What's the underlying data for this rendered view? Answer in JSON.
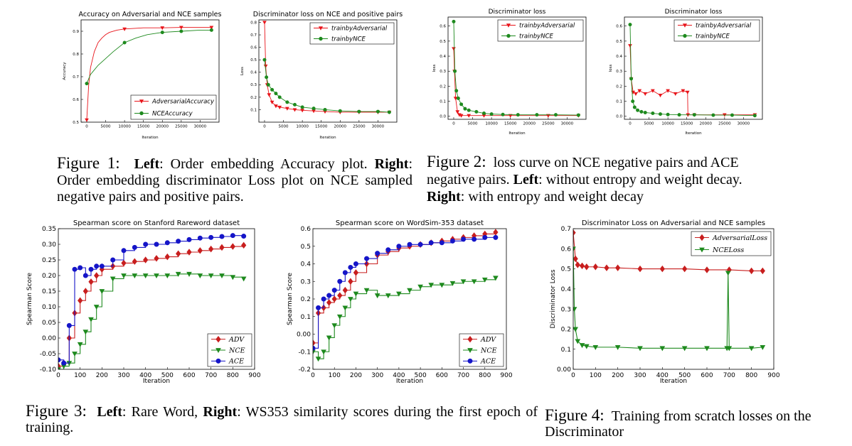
{
  "chart_data": [
    {
      "id": "fig1-left",
      "type": "line",
      "title": "Accuracy on Adversarial and NCE samples",
      "xlabel": "Iteration",
      "ylabel": "Accuracy",
      "xlim": [
        -1500,
        35000
      ],
      "ylim": [
        0.5,
        0.95
      ],
      "xticks": [
        0,
        5000,
        10000,
        15000,
        20000,
        25000,
        30000
      ],
      "yticks": [
        0.5,
        0.6,
        0.7,
        0.8,
        0.9
      ],
      "legend_position": "lower-right",
      "series": [
        {
          "name": "AdversarialAccuracy",
          "color": "#e8141a",
          "marker": "triangle-down",
          "x": [
            0,
            500,
            1000,
            2000,
            3000,
            4000,
            5000,
            6000,
            8000,
            10000,
            15000,
            20000,
            25000,
            30000,
            33000
          ],
          "y": [
            0.51,
            0.66,
            0.74,
            0.81,
            0.85,
            0.87,
            0.885,
            0.895,
            0.905,
            0.91,
            0.915,
            0.915,
            0.917,
            0.917,
            0.917
          ],
          "markers_x": [
            0,
            10000,
            20000,
            25000,
            33000
          ]
        },
        {
          "name": "NCEAccuracy",
          "color": "#1e8a1e",
          "marker": "circle",
          "x": [
            0,
            500,
            1000,
            2000,
            3000,
            5000,
            7000,
            10000,
            13000,
            16000,
            20000,
            25000,
            30000,
            33000
          ],
          "y": [
            0.67,
            0.69,
            0.71,
            0.73,
            0.75,
            0.78,
            0.81,
            0.85,
            0.87,
            0.885,
            0.895,
            0.9,
            0.905,
            0.905
          ],
          "markers_x": [
            0,
            10000,
            20000,
            25000,
            33000
          ]
        }
      ]
    },
    {
      "id": "fig1-right",
      "type": "line",
      "title": "Discriminator loss on NCE and positive pairs",
      "xlabel": "Iteration",
      "ylabel": "Loss",
      "xlim": [
        -1500,
        35000
      ],
      "ylim": [
        0.0,
        0.82
      ],
      "xticks": [
        0,
        5000,
        10000,
        15000,
        20000,
        25000,
        30000
      ],
      "yticks": [
        0.1,
        0.2,
        0.3,
        0.4,
        0.5,
        0.6,
        0.7,
        0.8
      ],
      "legend_position": "upper-right",
      "series": [
        {
          "name": "trainbyAdversarial",
          "color": "#e8141a",
          "marker": "triangle-down",
          "x": [
            0,
            300,
            700,
            1200,
            2000,
            3000,
            4000,
            6000,
            8000,
            10000,
            13000,
            16000,
            20000,
            25000,
            30000,
            33000
          ],
          "y": [
            0.8,
            0.45,
            0.3,
            0.22,
            0.16,
            0.13,
            0.12,
            0.11,
            0.1,
            0.095,
            0.09,
            0.085,
            0.08,
            0.08,
            0.08,
            0.08
          ]
        },
        {
          "name": "trainbyNCE",
          "color": "#1e8a1e",
          "marker": "circle",
          "x": [
            0,
            500,
            1000,
            2000,
            3000,
            4000,
            6000,
            8000,
            10000,
            13000,
            16000,
            20000,
            25000,
            30000,
            33000
          ],
          "y": [
            0.5,
            0.36,
            0.3,
            0.26,
            0.23,
            0.2,
            0.16,
            0.14,
            0.12,
            0.11,
            0.1,
            0.09,
            0.085,
            0.085,
            0.08
          ]
        }
      ]
    },
    {
      "id": "fig2-left",
      "type": "line",
      "title": "Discriminator loss",
      "xlabel": "Iteration",
      "ylabel": "loss",
      "xlim": [
        -1500,
        35000
      ],
      "ylim": [
        -0.02,
        0.66
      ],
      "xticks": [
        0,
        5000,
        10000,
        15000,
        20000,
        25000,
        30000
      ],
      "yticks": [
        0.0,
        0.1,
        0.2,
        0.3,
        0.4,
        0.5,
        0.6
      ],
      "legend_position": "upper-right",
      "series": [
        {
          "name": "trainbyAdversarial",
          "color": "#e8141a",
          "marker": "triangle-down",
          "x": [
            0,
            200,
            500,
            1000,
            1500,
            2000,
            4000,
            8000,
            15000,
            25000,
            33000
          ],
          "y": [
            0.45,
            0.3,
            0.12,
            0.03,
            0.01,
            0.005,
            0.005,
            0.005,
            0.005,
            0.005,
            0.005
          ]
        },
        {
          "name": "trainbyNCE",
          "color": "#1e8a1e",
          "marker": "circle",
          "x": [
            0,
            300,
            700,
            1200,
            2000,
            3000,
            4000,
            6000,
            8000,
            10000,
            13000,
            17000,
            22000,
            27000,
            33000
          ],
          "y": [
            0.63,
            0.3,
            0.17,
            0.12,
            0.08,
            0.05,
            0.04,
            0.03,
            0.02,
            0.015,
            0.012,
            0.01,
            0.01,
            0.01,
            0.008
          ]
        }
      ]
    },
    {
      "id": "fig2-right",
      "type": "line",
      "title": "Discriminator loss",
      "xlabel": "Iteration",
      "ylabel": "loss",
      "xlim": [
        -1500,
        35000
      ],
      "ylim": [
        -0.02,
        0.66
      ],
      "xticks": [
        0,
        5000,
        10000,
        15000,
        20000,
        25000,
        30000
      ],
      "yticks": [
        0.0,
        0.1,
        0.2,
        0.3,
        0.4,
        0.5,
        0.6
      ],
      "legend_position": "upper-right",
      "series": [
        {
          "name": "trainbyAdversarial",
          "color": "#e8141a",
          "marker": "triangle-down",
          "x": [
            0,
            300,
            800,
            1500,
            2500,
            4000,
            6000,
            8000,
            10000,
            12000,
            14000,
            15200,
            15300,
            17000,
            25000,
            33000
          ],
          "y": [
            0.47,
            0.25,
            0.16,
            0.15,
            0.17,
            0.15,
            0.17,
            0.14,
            0.17,
            0.15,
            0.17,
            0.16,
            0.01,
            0.01,
            0.01,
            0.01
          ]
        },
        {
          "name": "trainbyNCE",
          "color": "#1e8a1e",
          "marker": "circle",
          "x": [
            0,
            300,
            700,
            1200,
            2000,
            3000,
            4000,
            6000,
            8000,
            10000,
            13000,
            17000,
            22000,
            27000,
            33000
          ],
          "y": [
            0.61,
            0.25,
            0.1,
            0.06,
            0.04,
            0.03,
            0.025,
            0.02,
            0.015,
            0.012,
            0.01,
            0.01,
            0.008,
            0.008,
            0.005
          ]
        }
      ]
    },
    {
      "id": "fig3-left",
      "type": "line",
      "title": "Spearman score on Stanford Rareword dataset",
      "xlabel": "Iteration",
      "ylabel": "Spearman Score",
      "xlim": [
        0,
        900
      ],
      "ylim": [
        -0.1,
        0.35
      ],
      "xticks": [
        0,
        100,
        200,
        300,
        400,
        500,
        600,
        700,
        800,
        900
      ],
      "yticks": [
        -0.1,
        -0.05,
        0.0,
        0.05,
        0.1,
        0.15,
        0.2,
        0.25,
        0.3,
        0.35
      ],
      "legend_position": "lower-right",
      "series": [
        {
          "name": "ADV",
          "color": "#c81e1e",
          "marker": "diamond",
          "x": [
            0,
            25,
            50,
            75,
            100,
            125,
            150,
            175,
            200,
            250,
            300,
            350,
            400,
            450,
            500,
            550,
            600,
            650,
            700,
            750,
            800,
            850
          ],
          "y": [
            -0.09,
            -0.08,
            0.0,
            0.08,
            0.12,
            0.15,
            0.18,
            0.2,
            0.22,
            0.23,
            0.24,
            0.245,
            0.25,
            0.255,
            0.26,
            0.27,
            0.275,
            0.28,
            0.285,
            0.29,
            0.293,
            0.297
          ]
        },
        {
          "name": "NCE",
          "color": "#1e8a1e",
          "marker": "triangle-down",
          "x": [
            0,
            25,
            50,
            75,
            100,
            125,
            150,
            175,
            200,
            250,
            300,
            350,
            400,
            450,
            500,
            550,
            600,
            650,
            700,
            750,
            800,
            850
          ],
          "y": [
            -0.1,
            -0.09,
            -0.08,
            -0.05,
            -0.02,
            0.02,
            0.06,
            0.1,
            0.15,
            0.19,
            0.2,
            0.2,
            0.2,
            0.2,
            0.2,
            0.205,
            0.205,
            0.2,
            0.2,
            0.2,
            0.195,
            0.19
          ]
        },
        {
          "name": "ACE",
          "color": "#1515c8",
          "marker": "circle",
          "x": [
            0,
            25,
            50,
            75,
            100,
            125,
            150,
            175,
            200,
            250,
            300,
            350,
            400,
            450,
            500,
            550,
            600,
            650,
            700,
            750,
            800,
            850
          ],
          "y": [
            -0.07,
            -0.08,
            0.04,
            0.22,
            0.225,
            0.2,
            0.22,
            0.23,
            0.23,
            0.25,
            0.28,
            0.29,
            0.3,
            0.3,
            0.305,
            0.31,
            0.315,
            0.32,
            0.322,
            0.325,
            0.328,
            0.326
          ]
        }
      ]
    },
    {
      "id": "fig3-right",
      "type": "line",
      "title": "Spearman score on WordSim-353 dataset",
      "xlabel": "Iteration",
      "ylabel": "Spearman Score",
      "xlim": [
        0,
        900
      ],
      "ylim": [
        -0.2,
        0.6
      ],
      "xticks": [
        0,
        100,
        200,
        300,
        400,
        500,
        600,
        700,
        800,
        900
      ],
      "yticks": [
        -0.2,
        -0.1,
        0.0,
        0.1,
        0.2,
        0.3,
        0.4,
        0.5,
        0.6
      ],
      "legend_position": "lower-right",
      "series": [
        {
          "name": "ADV",
          "color": "#c81e1e",
          "marker": "diamond",
          "x": [
            0,
            25,
            50,
            75,
            100,
            125,
            150,
            175,
            200,
            250,
            300,
            350,
            400,
            450,
            500,
            550,
            600,
            650,
            700,
            750,
            800,
            850
          ],
          "y": [
            -0.05,
            0.12,
            0.15,
            0.18,
            0.2,
            0.22,
            0.25,
            0.3,
            0.35,
            0.4,
            0.45,
            0.47,
            0.49,
            0.5,
            0.51,
            0.52,
            0.53,
            0.54,
            0.55,
            0.56,
            0.57,
            0.58
          ]
        },
        {
          "name": "NCE",
          "color": "#1e8a1e",
          "marker": "triangle-down",
          "x": [
            0,
            25,
            50,
            75,
            100,
            125,
            150,
            175,
            200,
            250,
            300,
            350,
            400,
            450,
            500,
            550,
            600,
            650,
            700,
            750,
            800,
            850
          ],
          "y": [
            -0.1,
            -0.14,
            -0.1,
            -0.02,
            0.05,
            0.1,
            0.15,
            0.2,
            0.23,
            0.25,
            0.22,
            0.22,
            0.23,
            0.25,
            0.27,
            0.28,
            0.28,
            0.29,
            0.3,
            0.3,
            0.31,
            0.32
          ]
        },
        {
          "name": "ACE",
          "color": "#1515c8",
          "marker": "circle",
          "x": [
            0,
            25,
            50,
            75,
            100,
            125,
            150,
            175,
            200,
            250,
            300,
            350,
            400,
            450,
            500,
            550,
            600,
            650,
            700,
            750,
            800,
            850
          ],
          "y": [
            -0.08,
            0.15,
            0.2,
            0.22,
            0.25,
            0.3,
            0.35,
            0.38,
            0.4,
            0.43,
            0.46,
            0.48,
            0.5,
            0.51,
            0.51,
            0.52,
            0.52,
            0.53,
            0.54,
            0.54,
            0.55,
            0.55
          ]
        }
      ]
    },
    {
      "id": "fig4",
      "type": "line",
      "title": "Discriminator Loss on Adversarial and NCE samples",
      "xlabel": "Iteration",
      "ylabel": "Discriminator Loss",
      "xlim": [
        0,
        900
      ],
      "ylim": [
        0.0,
        0.7
      ],
      "xticks": [
        0,
        100,
        200,
        300,
        400,
        500,
        600,
        700,
        800,
        900
      ],
      "yticks": [
        0.0,
        0.1,
        0.2,
        0.3,
        0.4,
        0.5,
        0.6,
        0.7
      ],
      "legend_position": "upper-right",
      "series": [
        {
          "name": "AdversarialLoss",
          "color": "#c81e1e",
          "marker": "diamond",
          "x": [
            0,
            10,
            20,
            40,
            60,
            100,
            150,
            200,
            300,
            400,
            500,
            600,
            700,
            800,
            850
          ],
          "y": [
            0.68,
            0.55,
            0.52,
            0.515,
            0.51,
            0.51,
            0.505,
            0.505,
            0.5,
            0.5,
            0.5,
            0.495,
            0.495,
            0.49,
            0.49
          ]
        },
        {
          "name": "NCELoss",
          "color": "#1e8a1e",
          "marker": "triangle-down",
          "x": [
            0,
            5,
            10,
            20,
            40,
            60,
            100,
            200,
            300,
            400,
            500,
            600,
            690,
            695,
            700,
            800,
            850
          ],
          "y": [
            0.6,
            0.3,
            0.2,
            0.14,
            0.12,
            0.115,
            0.11,
            0.11,
            0.105,
            0.105,
            0.105,
            0.105,
            0.105,
            0.48,
            0.105,
            0.105,
            0.11
          ]
        }
      ]
    }
  ],
  "captions": {
    "fig1": {
      "number": "Figure 1:",
      "left_label": "Left",
      "left_text": ": Order embedding Accuracy plot.",
      "right_label": "Right",
      "right_text": ": Order embedding discriminator Loss plot on NCE sampled negative pairs and positive pairs."
    },
    "fig2": {
      "number": "Figure 2:",
      "text": "loss curve on NCE negative pairs and ACE negative pairs.",
      "left_label": "Left",
      "left_text": ": without entropy and weight decay.",
      "right_label": "Right",
      "right_text": ": with entropy and weight decay"
    },
    "fig3": {
      "number": "Figure 3:",
      "left_label": "Left",
      "left_text": ": Rare Word,",
      "right_label": "Right",
      "right_text": ": WS353 similarity scores during the first epoch of training."
    },
    "fig4": {
      "number": "Figure 4:",
      "text": "Training from scratch losses on the Discriminator"
    }
  }
}
